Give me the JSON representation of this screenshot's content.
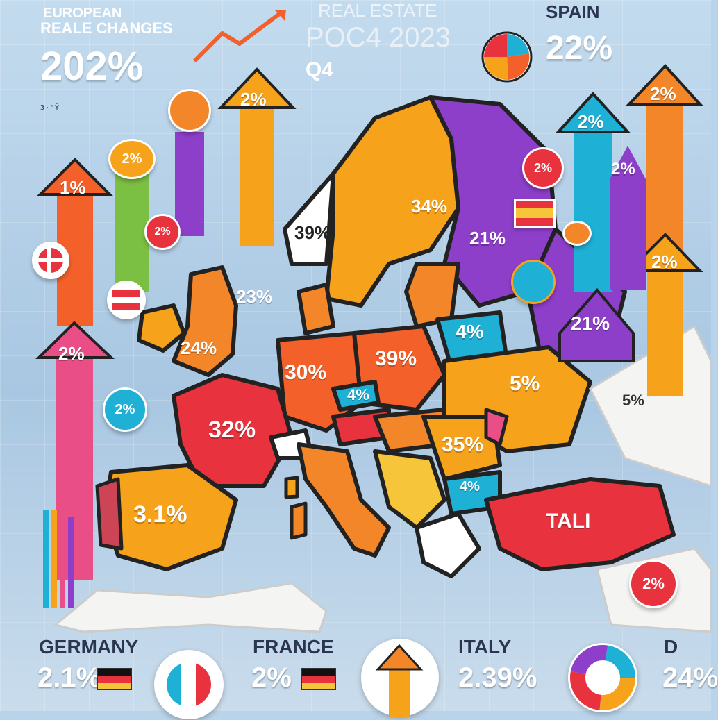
{
  "header": {
    "title_line1": "EUROPEAN",
    "title_line2": "REALE CHANGES",
    "big_value": "202%",
    "center_title": "REAL ESTATE",
    "center_sub": "POC4 2023",
    "center_q": "Q4",
    "right_country": "SPAIN",
    "right_value": "22%",
    "tiny_text_1": "3·'Ÿ  ",
    "tiny_text_2": "          "
  },
  "arrows": [
    {
      "label": "1%",
      "color": "#f4602a"
    },
    {
      "label": "2%",
      "color": "#e94e86"
    },
    {
      "label": "2%",
      "color": "#f7a21b"
    },
    {
      "label": "2%",
      "color": "#1fb0d6"
    },
    {
      "label": "2%",
      "color": "#f4862a"
    },
    {
      "label": "2%",
      "color": "#f7a21b"
    },
    {
      "label": "21%",
      "color": "#8d3fc9"
    },
    {
      "label": "2%",
      "color": "#8d3fc9"
    }
  ],
  "badges": [
    {
      "label": "2%",
      "color": "#f7a21b"
    },
    {
      "label": "2%",
      "color": "#e8323e"
    },
    {
      "label": "2%",
      "color": "#e8323e"
    },
    {
      "label": "2%",
      "color": "#1fb0d6"
    },
    {
      "label": "2%",
      "color": "#e8323e"
    }
  ],
  "map_labels": [
    {
      "text": "39%"
    },
    {
      "text": "34%"
    },
    {
      "text": "21%"
    },
    {
      "text": "23%"
    },
    {
      "text": "24%"
    },
    {
      "text": "30%"
    },
    {
      "text": "39%"
    },
    {
      "text": "4%"
    },
    {
      "text": "4%"
    },
    {
      "text": "32%"
    },
    {
      "text": "5%"
    },
    {
      "text": "35%"
    },
    {
      "text": "3.1%"
    },
    {
      "text": "4%"
    },
    {
      "text": "TALI"
    },
    {
      "text": "5%"
    }
  ],
  "footer": [
    {
      "name": "GERMANY",
      "value": "2.1%"
    },
    {
      "name": "FRANCE",
      "value": "2%"
    },
    {
      "name": "ITALY",
      "value": "2.39%"
    },
    {
      "name": "D",
      "value": "24%"
    }
  ],
  "icons": {
    "pie_icon": "pie-chart-icon",
    "trend_icon": "trend-arrow-icon",
    "donut_icon": "donut-chart-icon",
    "flag_icon": "flag-icon"
  },
  "colors": {
    "bg": "#b9d3ea",
    "orange": "#f7a21b",
    "red": "#e8323e",
    "purple": "#8d3fc9",
    "blue": "#1fb0d6",
    "pink": "#e94e86"
  }
}
